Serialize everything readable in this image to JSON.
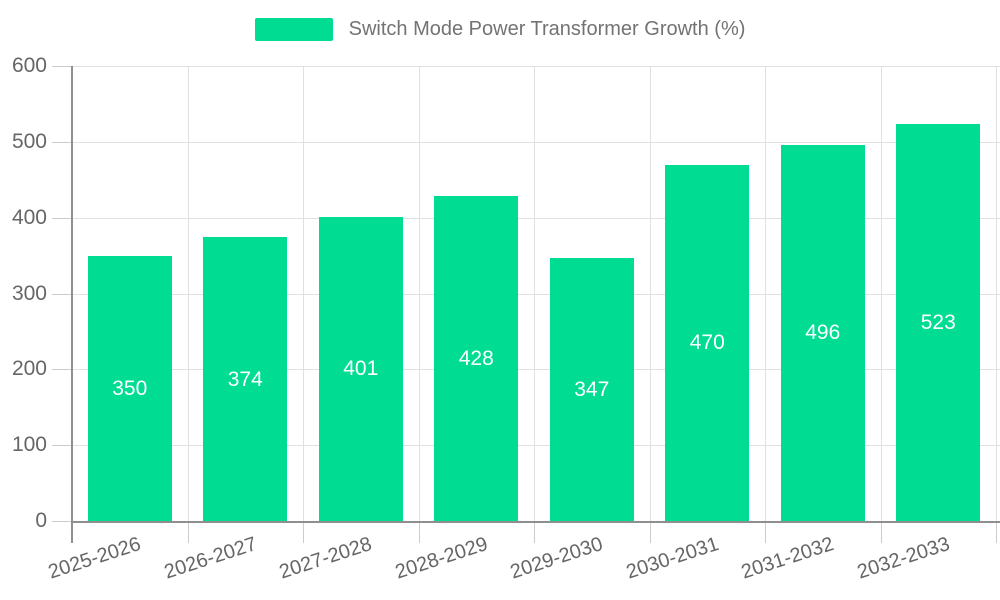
{
  "chart_data": {
    "type": "bar",
    "title": "Switch Mode Power Transformer Growth (%)",
    "categories": [
      "2025-2026",
      "2026-2027",
      "2027-2028",
      "2028-2029",
      "2029-2030",
      "2030-2031",
      "2031-2032",
      "2032-2033"
    ],
    "values": [
      350,
      374,
      401,
      428,
      347,
      470,
      496,
      523
    ],
    "xlabel": "",
    "ylabel": "",
    "ylim": [
      0,
      600
    ],
    "yticks": [
      0,
      100,
      200,
      300,
      400,
      500,
      600
    ],
    "grid": true,
    "legend_position": "top",
    "legend_label": "Switch Mode Power Transformer Growth (%)",
    "value_label_position": "inside-center",
    "colors": {
      "bar": "#00DD92",
      "value_label": "#ffffff",
      "axis_line": "#8f8f8f",
      "grid_line": "#e0e0e0",
      "tick_line": "#cccccc",
      "axis_text": "#666666",
      "legend_text": "#737373",
      "background": "#ffffff"
    }
  }
}
